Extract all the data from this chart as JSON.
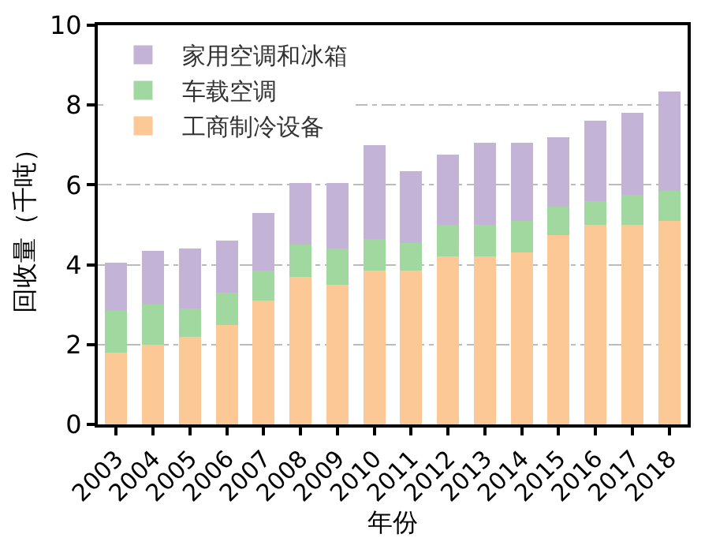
{
  "chart_data": {
    "type": "bar",
    "stacked": true,
    "xlabel": "年份",
    "ylabel": "回收量（千吨）",
    "categories": [
      "2003",
      "2004",
      "2005",
      "2006",
      "2007",
      "2008",
      "2009",
      "2010",
      "2011",
      "2012",
      "2013",
      "2014",
      "2015",
      "2016",
      "2017",
      "2018"
    ],
    "series": [
      {
        "name": "工商制冷设备",
        "color": "#fbc896",
        "values": [
          1.8,
          2.0,
          2.2,
          2.5,
          3.1,
          3.7,
          3.5,
          3.85,
          3.85,
          4.2,
          4.2,
          4.3,
          4.75,
          5.0,
          5.0,
          5.1
        ]
      },
      {
        "name": "车载空调",
        "color": "#a0d8a0",
        "values": [
          1.05,
          1.0,
          0.7,
          0.8,
          0.75,
          0.8,
          0.9,
          0.8,
          0.7,
          0.8,
          0.8,
          0.8,
          0.7,
          0.6,
          0.75,
          0.75
        ]
      },
      {
        "name": "家用空调和冰箱",
        "color": "#c3b3d7",
        "values": [
          1.2,
          1.35,
          1.5,
          1.3,
          1.45,
          1.55,
          1.65,
          2.35,
          1.8,
          1.75,
          2.05,
          1.95,
          1.75,
          2.0,
          2.05,
          2.5
        ]
      }
    ],
    "ylim": [
      0,
      10
    ],
    "yticks": [
      0,
      2,
      4,
      6,
      8,
      10
    ],
    "grid": "y",
    "legend": "top left"
  }
}
